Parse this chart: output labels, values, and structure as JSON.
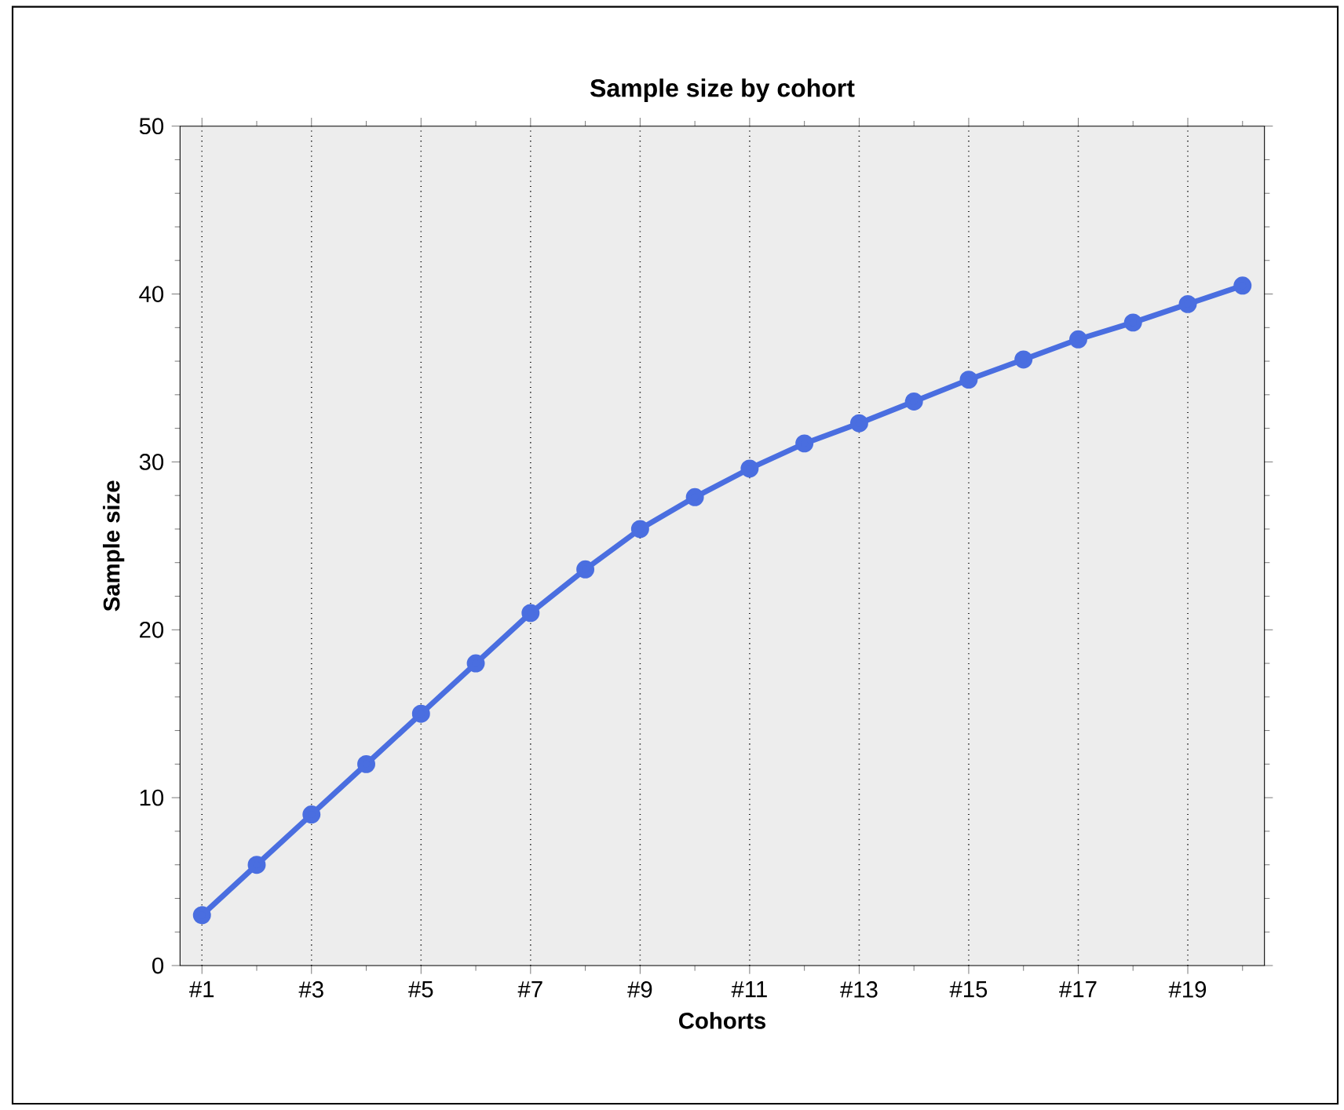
{
  "chart_data": {
    "type": "line",
    "title": "Sample size by cohort",
    "xlabel": "Cohorts",
    "ylabel": "Sample size",
    "categories": [
      "#1",
      null,
      "#3",
      null,
      "#5",
      null,
      "#7",
      null,
      "#9",
      null,
      "#11",
      null,
      "#13",
      null,
      "#15",
      null,
      "#17",
      null,
      "#19",
      null
    ],
    "values": [
      3,
      6,
      9,
      12,
      15,
      18,
      21,
      23.6,
      26,
      27.9,
      29.6,
      31.1,
      32.3,
      33.6,
      34.9,
      36.1,
      37.3,
      38.3,
      39.4,
      40.5
    ],
    "color": "#4a6ee0",
    "marker": "circle",
    "ylim": [
      0,
      50
    ],
    "yticks": [
      0,
      10,
      20,
      30,
      40,
      50
    ],
    "grid": "x"
  }
}
